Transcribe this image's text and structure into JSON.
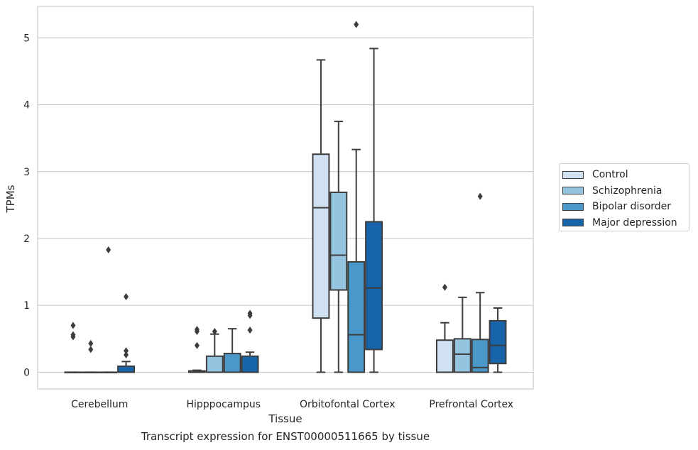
{
  "chart_data": {
    "type": "box",
    "xlabel": "Tissue",
    "ylabel": "TPMs",
    "caption": "Transcript expression for ENST00000511665 by tissue",
    "ylim": [
      -0.25,
      5.47
    ],
    "yticks": [
      0,
      1,
      2,
      3,
      4,
      5
    ],
    "grid": true,
    "legend_position": "right",
    "categories": [
      "Cerebellum",
      "Hipppocampus",
      "Orbitofontal Cortex",
      "Prefrontal Cortex"
    ],
    "series": [
      {
        "name": "Control",
        "color": "#d0e1f2",
        "boxes": [
          {
            "min": 0,
            "q1": 0,
            "median": 0,
            "q3": 0,
            "max": 0,
            "outliers": [
              0.53,
              0.56,
              0.7
            ]
          },
          {
            "min": 0,
            "q1": 0,
            "median": 0,
            "q3": 0.02,
            "max": 0.03,
            "outliers": [
              0.4,
              0.61,
              0.64
            ]
          },
          {
            "min": 0,
            "q1": 0.81,
            "median": 2.46,
            "q3": 3.26,
            "max": 4.67,
            "outliers": []
          },
          {
            "min": 0,
            "q1": 0,
            "median": 0,
            "q3": 0.48,
            "max": 0.74,
            "outliers": [
              1.27
            ]
          }
        ]
      },
      {
        "name": "Schizophrenia",
        "color": "#94c4df",
        "boxes": [
          {
            "min": 0,
            "q1": 0,
            "median": 0,
            "q3": 0,
            "max": 0,
            "outliers": [
              0.34,
              0.43
            ]
          },
          {
            "min": 0,
            "q1": 0,
            "median": 0,
            "q3": 0.24,
            "max": 0.57,
            "outliers": [
              0.61
            ]
          },
          {
            "min": 0,
            "q1": 1.23,
            "median": 1.75,
            "q3": 2.69,
            "max": 3.75,
            "outliers": []
          },
          {
            "min": 0,
            "q1": 0,
            "median": 0.27,
            "q3": 0.5,
            "max": 1.12,
            "outliers": []
          }
        ]
      },
      {
        "name": "Bipolar disorder",
        "color": "#4a98c9",
        "boxes": [
          {
            "min": 0,
            "q1": 0,
            "median": 0,
            "q3": 0,
            "max": 0,
            "outliers": [
              1.83
            ]
          },
          {
            "min": 0,
            "q1": 0,
            "median": 0,
            "q3": 0.28,
            "max": 0.65,
            "outliers": []
          },
          {
            "min": 0,
            "q1": 0,
            "median": 0.56,
            "q3": 1.65,
            "max": 3.33,
            "outliers": [
              5.2
            ]
          },
          {
            "min": 0,
            "q1": 0,
            "median": 0.07,
            "q3": 0.49,
            "max": 1.19,
            "outliers": [
              2.63
            ]
          }
        ]
      },
      {
        "name": "Major depression",
        "color": "#1764ab",
        "boxes": [
          {
            "min": 0,
            "q1": 0,
            "median": 0,
            "q3": 0.09,
            "max": 0.16,
            "outliers": [
              0.26,
              0.32,
              1.13
            ]
          },
          {
            "min": 0,
            "q1": 0,
            "median": 0,
            "q3": 0.24,
            "max": 0.3,
            "outliers": [
              0.63,
              0.85,
              0.88
            ]
          },
          {
            "min": 0,
            "q1": 0.34,
            "median": 1.26,
            "q3": 2.25,
            "max": 4.84,
            "outliers": []
          },
          {
            "min": 0,
            "q1": 0.13,
            "median": 0.4,
            "q3": 0.77,
            "max": 0.96,
            "outliers": []
          }
        ]
      }
    ]
  }
}
